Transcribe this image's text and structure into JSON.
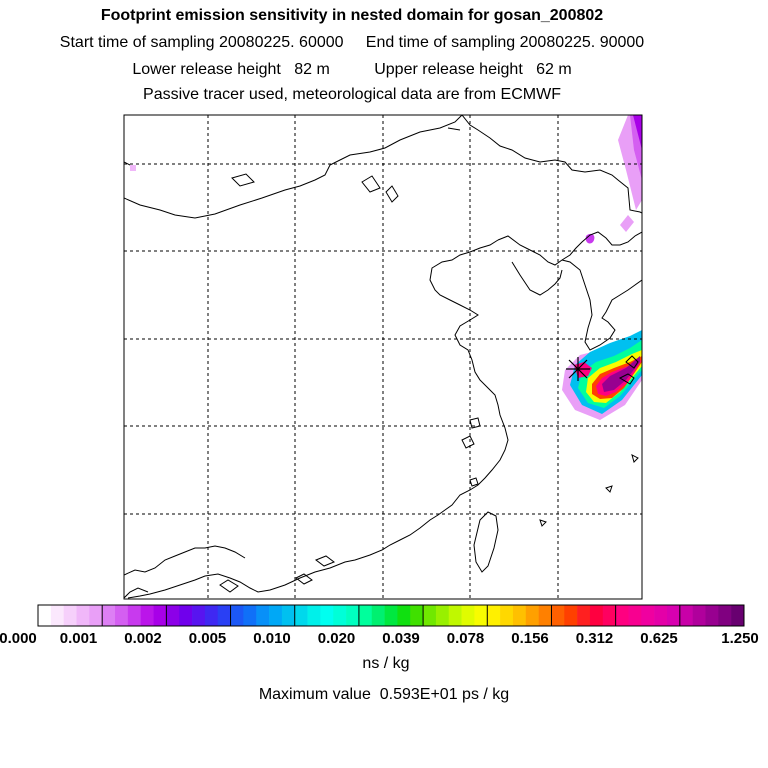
{
  "titles": {
    "line1": "Footprint emission sensitivity in nested domain for gosan_200802",
    "line2": "Start time of sampling 20080225. 60000     End time of sampling 20080225. 90000",
    "line3": "Lower release height   82 m          Upper release height   62 m",
    "line4": "Passive tracer used, meteorological data are from ECMWF"
  },
  "colorbar": {
    "labels": [
      "0.000",
      "0.001",
      "0.002",
      "0.005",
      "0.010",
      "0.020",
      "0.039",
      "0.078",
      "0.156",
      "0.312",
      "0.625",
      "1.250"
    ],
    "unit": "ns / kg",
    "colors": [
      [
        "#ffffff",
        "#fbe8fd",
        "#f6d0fb",
        "#f0b7f9",
        "#e99ff7"
      ],
      [
        "#dd7ff4",
        "#d45ff1",
        "#c83aee",
        "#bb15ea",
        "#a800e8"
      ],
      [
        "#8c00e8",
        "#7000ec",
        "#5814f0",
        "#3f28f2",
        "#2a40f4"
      ],
      [
        "#1c58f6",
        "#1070f8",
        "#0890f8",
        "#00a8f6",
        "#00c0f0"
      ],
      [
        "#00d8ec",
        "#00f0ea",
        "#00fff0",
        "#00ffd8",
        "#00ffc0"
      ],
      [
        "#00ff9c",
        "#00f070",
        "#00e840",
        "#10e010",
        "#40e000"
      ],
      [
        "#70e800",
        "#98f000",
        "#c0f800",
        "#e0fc00",
        "#f8fc00"
      ],
      [
        "#fff000",
        "#ffd800",
        "#ffc000",
        "#ffa000",
        "#ff8000"
      ],
      [
        "#ff6000",
        "#ff4000",
        "#ff2020",
        "#ff0040",
        "#ff0060"
      ],
      [
        "#ff0080",
        "#f80090",
        "#f000a0",
        "#e400a8",
        "#d800b0"
      ],
      [
        "#c800a8",
        "#b0009c",
        "#980090",
        "#800080",
        "#680070"
      ]
    ]
  },
  "max_value": "Maximum value  0.593E+01 ps / kg",
  "map": {
    "receptor_marker": "star-icon"
  }
}
